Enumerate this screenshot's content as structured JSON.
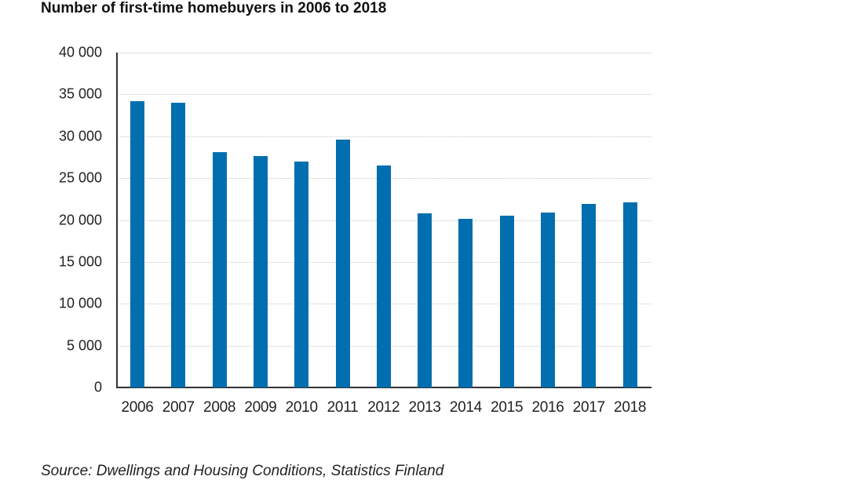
{
  "chart_data": {
    "type": "bar",
    "title": "Number of first-time homebuyers in 2006 to 2018",
    "xlabel": "",
    "ylabel": "",
    "ylim": [
      0,
      40000
    ],
    "yticks": [
      0,
      5000,
      10000,
      15000,
      20000,
      25000,
      30000,
      35000,
      40000
    ],
    "ytick_labels": [
      "0",
      "5 000",
      "10 000",
      "15 000",
      "20 000",
      "25 000",
      "30 000",
      "35 000",
      "40 000"
    ],
    "categories": [
      "2006",
      "2007",
      "2008",
      "2009",
      "2010",
      "2011",
      "2012",
      "2013",
      "2014",
      "2015",
      "2016",
      "2017",
      "2018"
    ],
    "values": [
      34200,
      34000,
      28100,
      27600,
      27000,
      29600,
      26500,
      20800,
      20100,
      20500,
      20900,
      21900,
      22100
    ],
    "grid": true,
    "legend": null,
    "bar_color": "#006eaf",
    "source": "Source: Dwellings and Housing Conditions, Statistics Finland"
  }
}
